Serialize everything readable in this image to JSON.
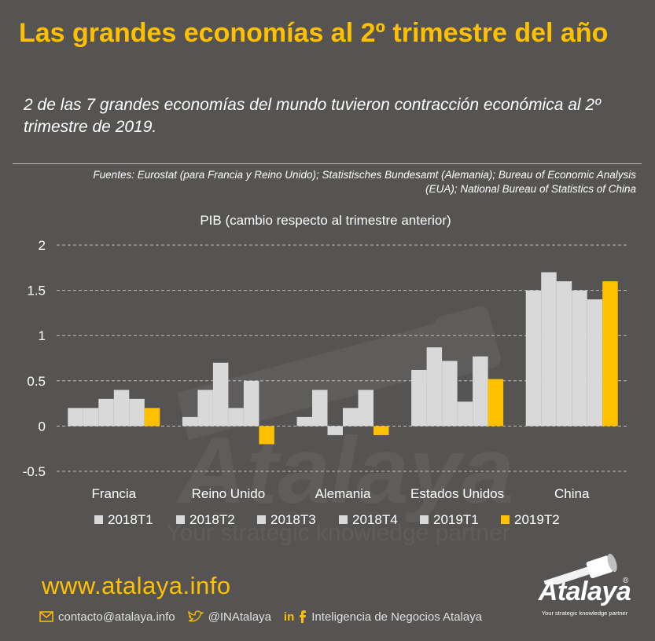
{
  "header": {
    "title": "Las grandes economías al 2º trimestre del año",
    "subtitle": "2 de las 7 grandes economías del mundo tuvieron contracción económica al 2º trimestre de 2019.",
    "sources": "Fuentes: Eurostat (para Francia y Reino Unido); Statistisches Bundesamt (Alemania); Bureau of Economic Analysis (EUA); National Bureau of Statistics of China"
  },
  "chart_data": {
    "type": "bar",
    "title": "PIB (cambio respecto al trimestre anterior)",
    "categories": [
      "Francia",
      "Reino Unido",
      "Alemania",
      "Estados Unidos",
      "China"
    ],
    "ylim": [
      -0.5,
      2
    ],
    "yticks": [
      "2",
      "1.5",
      "1",
      "0.5",
      "0",
      "-0.5"
    ],
    "ytick_values": [
      2,
      1.5,
      1,
      0.5,
      0,
      -0.5
    ],
    "grid": true,
    "legend_position": "bottom",
    "series": [
      {
        "name": "2018T1",
        "color": "#D9D9D9",
        "values": [
          0.2,
          0.1,
          0.1,
          0.62,
          1.5
        ]
      },
      {
        "name": "2018T2",
        "color": "#D9D9D9",
        "values": [
          0.2,
          0.4,
          0.4,
          0.87,
          1.7
        ]
      },
      {
        "name": "2018T3",
        "color": "#D9D9D9",
        "values": [
          0.3,
          0.7,
          -0.1,
          0.72,
          1.6
        ]
      },
      {
        "name": "2018T4",
        "color": "#D9D9D9",
        "values": [
          0.4,
          0.2,
          0.2,
          0.27,
          1.5
        ]
      },
      {
        "name": "2019T1",
        "color": "#D9D9D9",
        "values": [
          0.3,
          0.5,
          0.4,
          0.77,
          1.4
        ]
      },
      {
        "name": "2019T2",
        "color": "#FFC000",
        "values": [
          0.2,
          -0.2,
          -0.1,
          0.52,
          1.6
        ]
      }
    ]
  },
  "watermark": {
    "brand": "Atalaya",
    "tagline": "Your strategic knowledge partner"
  },
  "footer": {
    "url": "www.atalaya.info",
    "email": "contacto@atalaya.info",
    "twitter": "@INAtalaya",
    "linkedin_icon": "in",
    "company": "Inteligencia de Negocios Atalaya",
    "logo_word": "Atalaya",
    "logo_tagline": "Your strategic knowledge partner",
    "logo_reg": "®"
  },
  "colors": {
    "background": "#555452",
    "accent": "#FFC000",
    "bar_gray": "#D9D9D9",
    "text": "#FFFFFF"
  }
}
